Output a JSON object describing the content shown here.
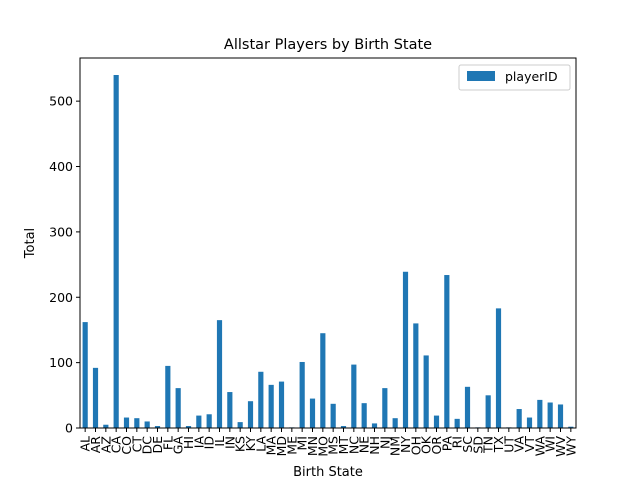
{
  "chart_data": {
    "type": "bar",
    "title": "Allstar Players by Birth State",
    "xlabel": "Birth State",
    "ylabel": "Total",
    "ylim": [
      0,
      566
    ],
    "yticks": [
      0,
      100,
      200,
      300,
      400,
      500
    ],
    "legend_position": "top-right",
    "grid": false,
    "categories": [
      "AL",
      "AR",
      "AZ",
      "CA",
      "CO",
      "CT",
      "DC",
      "DE",
      "FL",
      "GA",
      "HI",
      "IA",
      "ID",
      "IL",
      "IN",
      "KS",
      "KY",
      "LA",
      "MA",
      "MD",
      "ME",
      "MI",
      "MN",
      "MO",
      "MS",
      "MT",
      "NC",
      "NE",
      "NH",
      "NJ",
      "NM",
      "NY",
      "OH",
      "OK",
      "OR",
      "PA",
      "RI",
      "SC",
      "SD",
      "TN",
      "TX",
      "UT",
      "VA",
      "VT",
      "WA",
      "WI",
      "WV",
      "WY"
    ],
    "series": [
      {
        "name": "playerID",
        "color": "#1f77b4",
        "values": [
          162,
          92,
          5,
          540,
          16,
          15,
          10,
          3,
          95,
          61,
          3,
          19,
          21,
          165,
          55,
          9,
          41,
          86,
          66,
          71,
          1,
          101,
          45,
          145,
          37,
          3,
          97,
          38,
          7,
          61,
          15,
          239,
          160,
          111,
          19,
          234,
          14,
          63,
          1,
          50,
          183,
          1,
          29,
          16,
          43,
          39,
          36,
          2
        ]
      }
    ]
  }
}
